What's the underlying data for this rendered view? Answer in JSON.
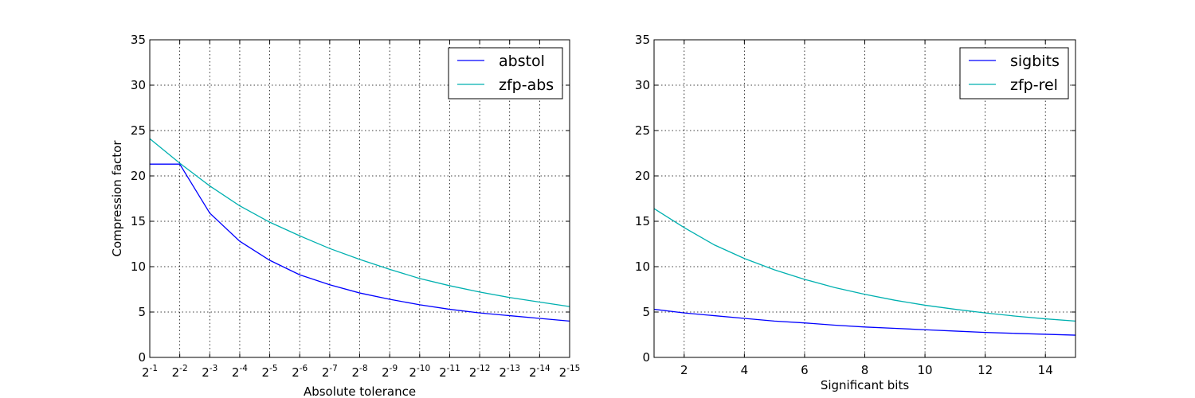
{
  "chart_data": [
    {
      "type": "line",
      "ylabel": "Compression factor",
      "xlabel": "Absolute tolerance",
      "xscale": "log2-reversed",
      "x_tick_labels": [
        {
          "base": "2",
          "exp": "-1"
        },
        {
          "base": "2",
          "exp": "-2"
        },
        {
          "base": "2",
          "exp": "-3"
        },
        {
          "base": "2",
          "exp": "-4"
        },
        {
          "base": "2",
          "exp": "-5"
        },
        {
          "base": "2",
          "exp": "-6"
        },
        {
          "base": "2",
          "exp": "-7"
        },
        {
          "base": "2",
          "exp": "-8"
        },
        {
          "base": "2",
          "exp": "-9"
        },
        {
          "base": "2",
          "exp": "-10"
        },
        {
          "base": "2",
          "exp": "-11"
        },
        {
          "base": "2",
          "exp": "-12"
        },
        {
          "base": "2",
          "exp": "-13"
        },
        {
          "base": "2",
          "exp": "-14"
        },
        {
          "base": "2",
          "exp": "-15"
        }
      ],
      "y_ticks": [
        "0",
        "5",
        "10",
        "15",
        "20",
        "25",
        "30",
        "35"
      ],
      "ylim": [
        0,
        35
      ],
      "grid": true,
      "legend_position": "top-right",
      "x": [
        0.5,
        0.25,
        0.125,
        0.0625,
        0.03125,
        0.015625,
        0.0078125,
        0.00390625,
        0.001953125,
        0.0009765625,
        0.00048828125,
        0.000244140625,
        0.0001220703125,
        6.103515625e-05,
        3.0517578125e-05
      ],
      "series": [
        {
          "name": "abstol",
          "color": "#0000ff",
          "values": [
            21.3,
            21.3,
            15.9,
            12.8,
            10.7,
            9.1,
            8.0,
            7.1,
            6.4,
            5.8,
            5.3,
            4.9,
            4.6,
            4.3,
            4.0
          ]
        },
        {
          "name": "zfp-abs",
          "color": "#00b0b0",
          "values": [
            24.1,
            21.4,
            18.9,
            16.7,
            14.9,
            13.4,
            12.0,
            10.8,
            9.7,
            8.7,
            7.9,
            7.2,
            6.6,
            6.1,
            5.6
          ]
        }
      ]
    },
    {
      "type": "line",
      "ylabel": "",
      "xlabel": "Significant bits",
      "x_tick_labels": [
        "2",
        "4",
        "6",
        "8",
        "10",
        "12",
        "14"
      ],
      "xlim": [
        1,
        15
      ],
      "y_ticks": [
        "0",
        "5",
        "10",
        "15",
        "20",
        "25",
        "30",
        "35"
      ],
      "ylim": [
        0,
        35
      ],
      "grid": true,
      "legend_position": "top-right",
      "x": [
        1,
        2,
        3,
        4,
        5,
        6,
        7,
        8,
        9,
        10,
        11,
        12,
        13,
        14,
        15
      ],
      "series": [
        {
          "name": "sigbits",
          "color": "#0000ff",
          "values": [
            5.3,
            4.9,
            4.6,
            4.3,
            4.0,
            3.8,
            3.55,
            3.35,
            3.2,
            3.05,
            2.9,
            2.75,
            2.65,
            2.55,
            2.45
          ]
        },
        {
          "name": "zfp-rel",
          "color": "#00b0b0",
          "values": [
            16.4,
            14.3,
            12.4,
            10.9,
            9.65,
            8.6,
            7.7,
            6.95,
            6.3,
            5.75,
            5.3,
            4.9,
            4.55,
            4.25,
            4.0
          ]
        }
      ]
    }
  ]
}
